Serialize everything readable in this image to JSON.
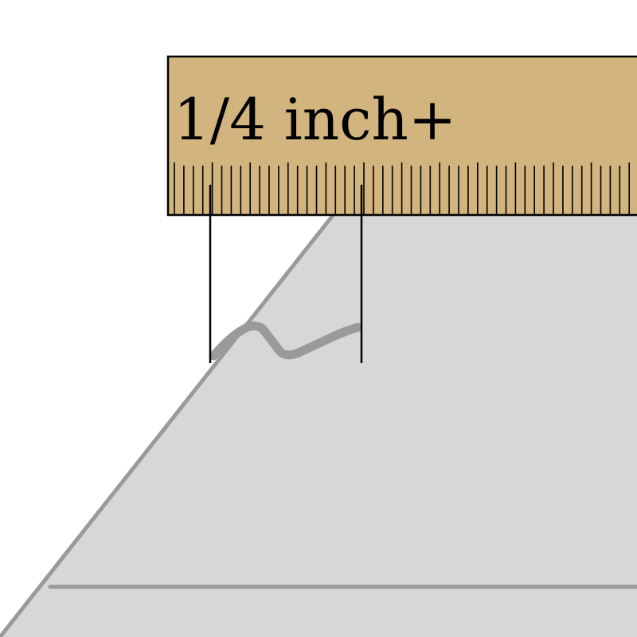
{
  "measurement": {
    "label": "1/4 inch+"
  },
  "colors": {
    "background": "#ffffff",
    "ruler_fill": "#d2b47e",
    "ruler_stroke": "#000000",
    "surface_fill": "#d7d7d7",
    "surface_edge": "#9a9a9a",
    "damage_mark": "#9a9a9a",
    "guide_line": "#000000"
  },
  "icons": {
    "ruler": "ruler-icon",
    "chip": "chip-damage-icon"
  }
}
